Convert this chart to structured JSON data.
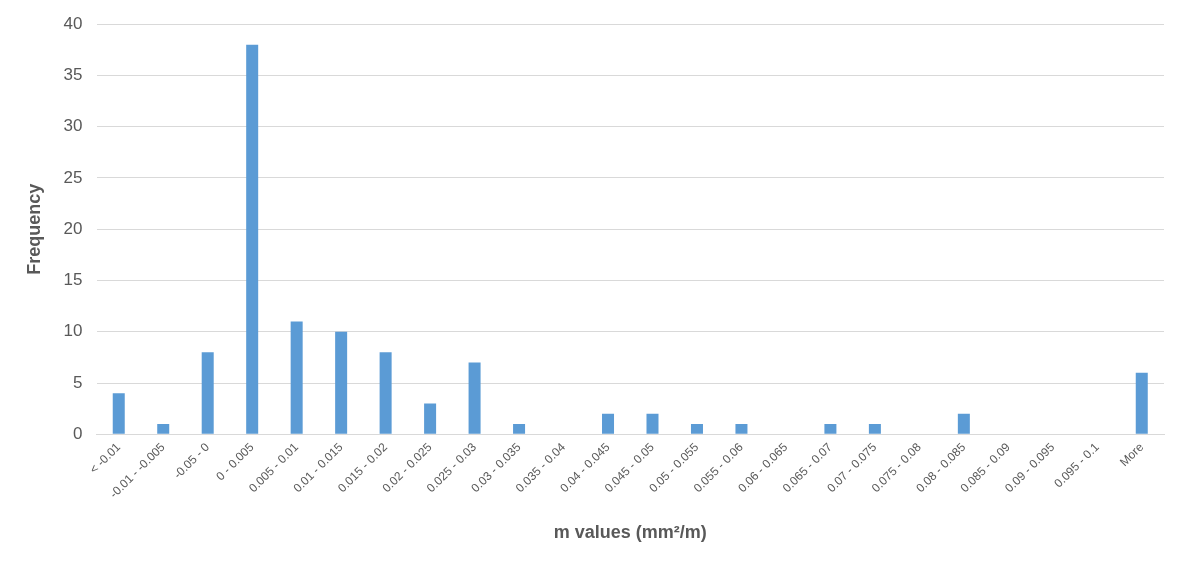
{
  "chart_data": {
    "type": "bar",
    "xlabel": "m values (mm²/m)",
    "ylabel": "Frequency",
    "categories": [
      "< -0.01",
      "-0.01 - -0.005",
      "-0.05 - 0",
      "0 - 0.005",
      "0.005 - 0.01",
      "0.01 - 0.015",
      "0.015 - 0.02",
      "0.02 - 0.025",
      "0.025 - 0.03",
      "0.03 - 0.035",
      "0.035 - 0.04",
      "0.04 - 0.045",
      "0.045 - 0.05",
      "0.05 - 0.055",
      "0.055 - 0.06",
      "0.06 - 0.065",
      "0.065 - 0.07",
      "0.07 - 0.075",
      "0.075 - 0.08",
      "0.08 - 0.085",
      "0.085 - 0.09",
      "0.09 - 0.095",
      "0.095 - 0.1",
      "More"
    ],
    "values": [
      4,
      1,
      8,
      38,
      11,
      10,
      8,
      3,
      7,
      1,
      0,
      2,
      2,
      1,
      1,
      0,
      1,
      1,
      0,
      2,
      0,
      0,
      0,
      6
    ],
    "color": "#5b9bd5",
    "ylim": [
      0,
      40
    ],
    "yticks": [
      0,
      5,
      10,
      15,
      20,
      25,
      30,
      35,
      40
    ],
    "grid": "y",
    "legend": false
  }
}
